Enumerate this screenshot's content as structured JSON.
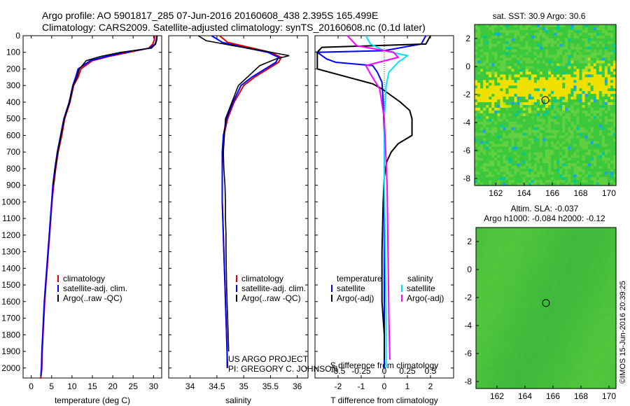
{
  "header": {
    "line1": "Argo profile: AO 5901817_285 07-Jun-2016 20160608_438 2.395S 165.499E",
    "line2": "Climatology: CARS2009. Satellite-adjusted climatology: synTS_20160608.nc (0.1d later)"
  },
  "credits": {
    "project": "US ARGO PROJECT",
    "pi": "PI: GREGORY C. JOHNSON"
  },
  "timestamp": "©IMOS 15-Jun-2016 20:39:25",
  "colors": {
    "climatology": "#e00000",
    "satellite": "#0000ff",
    "argo": "#000000",
    "sal_satellite": "#00e0ff",
    "sal_argo": "#ff00ff"
  },
  "depth_axis": {
    "min": 0,
    "max": 2060,
    "ticks": [
      0,
      100,
      200,
      300,
      400,
      500,
      600,
      700,
      800,
      900,
      1000,
      1100,
      1200,
      1300,
      1400,
      1500,
      1600,
      1700,
      1800,
      1900,
      2000
    ]
  },
  "chart_data": [
    {
      "type": "line",
      "id": "temperature",
      "xlabel": "temperature (deg C)",
      "xlim": [
        -2,
        32
      ],
      "xticks": [
        0,
        5,
        10,
        15,
        20,
        25,
        30
      ],
      "legend": [
        "climatology",
        "satellite-adj. clim.",
        "Argo(..raw -QC)"
      ],
      "series": [
        {
          "name": "climatology",
          "color": "#e00000",
          "x": [
            30.3,
            30.2,
            29.8,
            28.8,
            24,
            19,
            15,
            12.2,
            11.5,
            10.4,
            9.5,
            8.2,
            7.5,
            6.6,
            6,
            5.5,
            5.1,
            4.8,
            4.5,
            4.2,
            3.9,
            3.6,
            3.3,
            3.1,
            2.9,
            2.7,
            2.6,
            2.4,
            2.3,
            2.2,
            2.1
          ],
          "depth": [
            0,
            25,
            50,
            75,
            100,
            125,
            150,
            200,
            250,
            300,
            400,
            500,
            600,
            700,
            800,
            900,
            1000,
            1100,
            1200,
            1300,
            1400,
            1500,
            1600,
            1700,
            1800,
            1900,
            2000,
            2050,
            2060,
            2060,
            2060
          ]
        },
        {
          "name": "satellite",
          "color": "#0000ff",
          "x": [
            30.8,
            30.7,
            30.4,
            29,
            23,
            18.5,
            14.5,
            11.5,
            10.9,
            10.2,
            9.3,
            8,
            7.2,
            6.4,
            5.8,
            5.3,
            5,
            4.7,
            4.4,
            4.1,
            3.8,
            3.5,
            3.2,
            3,
            2.8,
            2.6,
            2.5,
            2.35
          ],
          "depth": [
            0,
            25,
            50,
            75,
            100,
            125,
            150,
            200,
            250,
            300,
            400,
            500,
            600,
            700,
            800,
            900,
            1000,
            1100,
            1200,
            1300,
            1400,
            1500,
            1600,
            1700,
            1800,
            1900,
            2000,
            2050
          ]
        },
        {
          "name": "Argo",
          "color": "#000000",
          "x": [
            30.9,
            30.8,
            30.5,
            29.5,
            22,
            17,
            13.5,
            11.8,
            11.2,
            10.3,
            9.4,
            8.1,
            7.3,
            6.5,
            5.9,
            5.4
          ],
          "depth": [
            0,
            25,
            50,
            75,
            100,
            125,
            150,
            200,
            250,
            300,
            400,
            500,
            600,
            700,
            800,
            900
          ]
        }
      ]
    },
    {
      "type": "line",
      "id": "salinity",
      "xlabel": "salinity",
      "xlim": [
        33.6,
        36.2
      ],
      "xticks": [
        34,
        34.5,
        35,
        35.5,
        36
      ],
      "legend": [
        "climatology",
        "satellite-adj. clim.",
        "Argo(..raw -QC)"
      ],
      "series": [
        {
          "name": "climatology",
          "color": "#e00000",
          "x": [
            34.55,
            34.7,
            35.1,
            35.5,
            35.7,
            35.65,
            35.45,
            35.2,
            35,
            34.82,
            34.7,
            34.63,
            34.61,
            34.6,
            34.6,
            34.6,
            34.61,
            34.62,
            34.63,
            34.64,
            34.65,
            34.66,
            34.67,
            34.68,
            34.69,
            34.69
          ],
          "depth": [
            0,
            40,
            70,
            100,
            130,
            160,
            200,
            250,
            300,
            400,
            500,
            600,
            700,
            800,
            900,
            1000,
            1100,
            1200,
            1300,
            1400,
            1500,
            1600,
            1700,
            1800,
            1900,
            2000
          ]
        },
        {
          "name": "satellite",
          "color": "#0000ff",
          "x": [
            34.4,
            34.6,
            35,
            35.45,
            35.65,
            35.6,
            35.4,
            35.15,
            34.95,
            34.8,
            34.68,
            34.62,
            34.6,
            34.6,
            34.6,
            34.6,
            34.61,
            34.62,
            34.63,
            34.64,
            34.65,
            34.66,
            34.67,
            34.68,
            34.69,
            34.7
          ],
          "depth": [
            0,
            40,
            70,
            100,
            130,
            160,
            200,
            250,
            300,
            400,
            500,
            600,
            700,
            800,
            900,
            1000,
            1100,
            1200,
            1300,
            1400,
            1500,
            1600,
            1700,
            1800,
            1900,
            2000
          ]
        },
        {
          "name": "Argo",
          "color": "#000000",
          "x": [
            34.15,
            34.3,
            34.8,
            35.35,
            35.85,
            35.6,
            35.3,
            35.1,
            34.9,
            34.78,
            34.66,
            34.64,
            34.62,
            34.63,
            34.65,
            34.66,
            34.66,
            34.67,
            34.67,
            34.68,
            34.69,
            34.7,
            34.71,
            34.72
          ],
          "depth": [
            0,
            30,
            60,
            90,
            120,
            140,
            180,
            240,
            300,
            400,
            500,
            600,
            700,
            800,
            900,
            1000,
            1100,
            1200,
            1300,
            1500,
            1600,
            1700,
            1800,
            1900
          ]
        }
      ]
    },
    {
      "type": "line",
      "id": "difference",
      "xlabel": "T difference from climatology",
      "xlabel2": "S difference from climatology",
      "xlim": [
        -3,
        3
      ],
      "xticks": [
        -2,
        -1,
        0,
        1,
        2
      ],
      "sticks": [
        -0.5,
        -0.25,
        0,
        0.25,
        0.5
      ],
      "stick_labels": [
        "-0.5",
        "-0.25",
        "0",
        "0.25",
        "0.5"
      ],
      "legend_t": [
        "temperature",
        "satellite",
        "Argo(-adj)"
      ],
      "legend_s": [
        "salinity",
        "satellite",
        "Argo(-adj)"
      ],
      "series": [
        {
          "name": "T satellite",
          "color": "#0000ff",
          "x": [
            1.8,
            1.6,
            0,
            -2.9,
            -2.5,
            -2.1,
            -0.5,
            -0.3,
            -0.1,
            -0.05,
            0,
            0,
            0,
            0
          ],
          "depth": [
            0,
            50,
            90,
            100,
            140,
            160,
            180,
            220,
            280,
            400,
            600,
            900,
            1400,
            2000
          ]
        },
        {
          "name": "T Argo",
          "color": "#000000",
          "x": [
            2,
            1.8,
            -2.7,
            -2.9,
            -2.9,
            -0.5,
            -0.1,
            0.3,
            0.7,
            1.1,
            1.2,
            1.2,
            0.6,
            0.3,
            0.1,
            0,
            -0.05,
            -0.1,
            -0.1,
            0,
            0
          ],
          "depth": [
            0,
            50,
            70,
            100,
            200,
            290,
            320,
            360,
            400,
            450,
            500,
            600,
            650,
            700,
            760,
            850,
            1000,
            1300,
            1600,
            1800,
            1950
          ]
        },
        {
          "name": "S satellite",
          "color": "#00e0ff",
          "x": [
            -0.2,
            -0.15,
            0,
            0.25,
            0.15,
            0.05,
            0.02,
            0,
            0,
            0.01,
            0.02,
            0.02
          ],
          "depth": [
            0,
            50,
            90,
            120,
            160,
            220,
            300,
            500,
            900,
            1300,
            1700,
            2000
          ]
        },
        {
          "name": "S Argo",
          "color": "#ff00ff",
          "x": [
            -0.4,
            -0.3,
            0.1,
            0.15,
            -0.2,
            -0.15,
            -0.05,
            0,
            0.03,
            0.04,
            0.05,
            0.06
          ],
          "depth": [
            0,
            60,
            100,
            130,
            180,
            230,
            320,
            500,
            900,
            1300,
            1700,
            1950
          ]
        }
      ]
    },
    {
      "type": "heatmap",
      "id": "sst_map",
      "title": "sat. SST: 30.9 Argo: 30.6",
      "xlim": [
        160.5,
        170.5
      ],
      "ylim": [
        -8.5,
        3
      ],
      "xticks": [
        162,
        164,
        166,
        168,
        170
      ],
      "yticks": [
        -8,
        -6,
        -4,
        -2,
        0,
        2
      ],
      "marker": {
        "lon": 165.499,
        "lat": -2.395
      }
    },
    {
      "type": "heatmap",
      "id": "sla_map",
      "title": "Altim. SLA: -0.037",
      "subtitle": "Argo h1000: -0.084 h2000: -0.12",
      "xlim": [
        160.5,
        170.5
      ],
      "ylim": [
        -8.5,
        3
      ],
      "xticks": [
        162,
        164,
        166,
        168,
        170
      ],
      "yticks": [
        -8,
        -6,
        -4,
        -2,
        0,
        2
      ],
      "marker": {
        "lon": 165.499,
        "lat": -2.395
      }
    }
  ]
}
